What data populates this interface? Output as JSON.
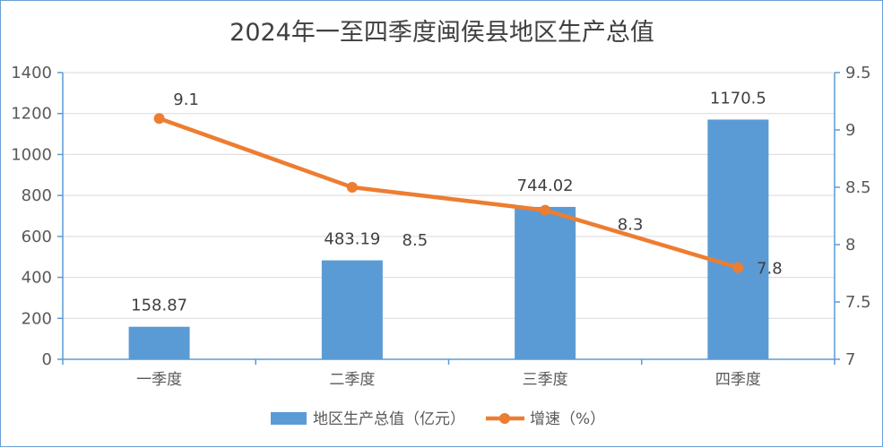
{
  "chart_data": {
    "type": "bar",
    "title": "2024年一至四季度闽侯县地区生产总值",
    "categories": [
      "一季度",
      "二季度",
      "三季度",
      "四季度"
    ],
    "series": [
      {
        "name": "地区生产总值（亿元）",
        "type": "bar",
        "axis": "left",
        "values": [
          158.87,
          483.19,
          744.02,
          1170.5
        ],
        "labels": [
          "158.87",
          "483.19",
          "744.02",
          "1170.5"
        ],
        "color": "#5b9bd5"
      },
      {
        "name": "增速（%）",
        "type": "line",
        "axis": "right",
        "values": [
          9.1,
          8.5,
          8.3,
          7.8
        ],
        "labels": [
          "9.1",
          "8.5",
          "8.3",
          "7.8"
        ],
        "color": "#ed7d31"
      }
    ],
    "left_axis": {
      "ylim": [
        0,
        1400
      ],
      "ticks": [
        "0",
        "200",
        "400",
        "600",
        "800",
        "1000",
        "1200",
        "1400"
      ]
    },
    "right_axis": {
      "ylim": [
        7,
        9.5
      ],
      "ticks": [
        "7",
        "7.5",
        "8",
        "8.5",
        "9",
        "9.5"
      ]
    },
    "grid": true,
    "legend_position": "bottom"
  }
}
